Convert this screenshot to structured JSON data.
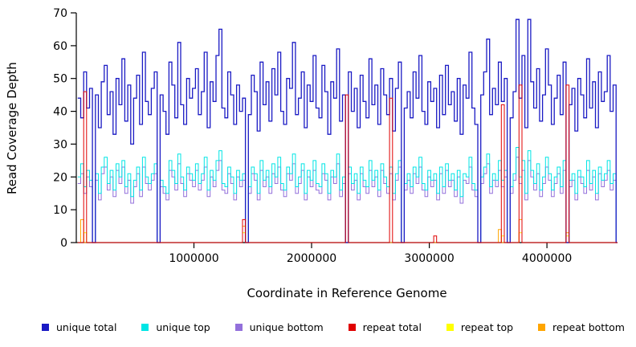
{
  "figure": {
    "background": "#FFFFFF"
  },
  "chart_data": {
    "type": "line",
    "style": "step",
    "title": "",
    "xlabel": "Coordinate in Reference Genome",
    "ylabel": "Read Coverage Depth",
    "xlim": [
      0,
      4600000
    ],
    "ylim": [
      0,
      70
    ],
    "x_ticks": [
      1000000,
      2000000,
      3000000,
      4000000
    ],
    "x_tick_labels": [
      "1000000",
      "2000000",
      "3000000",
      "4000000"
    ],
    "y_ticks": [
      0,
      10,
      20,
      30,
      40,
      50,
      60,
      70
    ],
    "grid": false,
    "legend_position": "bottom",
    "x_start": 12500,
    "x_step": 25000,
    "n_points": 184,
    "series": [
      {
        "name": "unique total",
        "color": "#1A1AC4",
        "values": [
          44,
          38,
          52,
          41,
          47,
          0,
          45,
          35,
          49,
          54,
          39,
          46,
          33,
          50,
          42,
          56,
          37,
          48,
          30,
          44,
          51,
          36,
          58,
          43,
          39,
          47,
          52,
          0,
          45,
          40,
          33,
          55,
          48,
          38,
          61,
          42,
          36,
          50,
          44,
          47,
          53,
          39,
          46,
          58,
          35,
          49,
          43,
          57,
          65,
          41,
          38,
          52,
          45,
          36,
          48,
          40,
          44,
          0,
          39,
          51,
          46,
          34,
          55,
          42,
          49,
          37,
          53,
          45,
          58,
          40,
          36,
          50,
          47,
          61,
          39,
          44,
          52,
          35,
          48,
          43,
          57,
          41,
          38,
          54,
          46,
          33,
          49,
          44,
          59,
          37,
          45,
          0,
          52,
          40,
          47,
          35,
          51,
          43,
          38,
          56,
          42,
          48,
          36,
          53,
          45,
          39,
          50,
          34,
          47,
          55,
          0,
          41,
          46,
          38,
          52,
          44,
          57,
          40,
          36,
          49,
          43,
          47,
          35,
          51,
          39,
          54,
          42,
          46,
          37,
          50,
          33,
          48,
          44,
          58,
          41,
          36,
          0,
          45,
          52,
          62,
          39,
          47,
          42,
          55,
          43,
          50,
          0,
          38,
          46,
          68,
          44,
          57,
          35,
          68,
          49,
          41,
          53,
          37,
          45,
          59,
          48,
          36,
          44,
          51,
          39,
          55,
          0,
          42,
          47,
          34,
          50,
          45,
          38,
          56,
          41,
          49,
          35,
          52,
          43,
          46,
          57,
          40,
          48,
          0
        ]
      },
      {
        "name": "unique top",
        "color": "#00E5E5",
        "values": [
          20,
          24,
          17,
          22,
          19,
          0,
          21,
          15,
          23,
          26,
          18,
          22,
          16,
          24,
          20,
          25,
          17,
          21,
          14,
          19,
          23,
          16,
          26,
          20,
          18,
          21,
          24,
          0,
          19,
          17,
          15,
          25,
          22,
          18,
          27,
          20,
          16,
          23,
          21,
          19,
          24,
          18,
          21,
          26,
          16,
          22,
          19,
          25,
          28,
          18,
          17,
          23,
          20,
          15,
          22,
          19,
          21,
          0,
          17,
          23,
          21,
          15,
          25,
          19,
          22,
          17,
          24,
          20,
          26,
          18,
          16,
          23,
          21,
          27,
          17,
          20,
          24,
          15,
          22,
          19,
          25,
          18,
          17,
          24,
          21,
          15,
          22,
          20,
          27,
          16,
          20,
          0,
          23,
          18,
          21,
          15,
          23,
          19,
          17,
          25,
          19,
          22,
          16,
          24,
          20,
          17,
          23,
          15,
          21,
          25,
          0,
          18,
          21,
          17,
          23,
          20,
          26,
          18,
          16,
          22,
          19,
          21,
          15,
          23,
          17,
          24,
          19,
          21,
          16,
          22,
          14,
          21,
          20,
          26,
          18,
          16,
          0,
          20,
          23,
          27,
          17,
          21,
          19,
          25,
          19,
          22,
          0,
          17,
          21,
          29,
          20,
          25,
          15,
          28,
          22,
          18,
          24,
          16,
          20,
          26,
          21,
          16,
          20,
          23,
          17,
          25,
          0,
          19,
          21,
          15,
          22,
          20,
          17,
          25,
          18,
          22,
          15,
          23,
          19,
          21,
          25,
          18,
          21,
          0
        ]
      },
      {
        "name": "unique bottom",
        "color": "#9370DB",
        "values": [
          18,
          21,
          15,
          20,
          17,
          0,
          19,
          13,
          21,
          23,
          16,
          20,
          14,
          22,
          18,
          23,
          15,
          19,
          12,
          17,
          21,
          14,
          23,
          18,
          16,
          19,
          21,
          0,
          17,
          15,
          13,
          22,
          20,
          16,
          24,
          18,
          14,
          21,
          19,
          17,
          22,
          16,
          19,
          23,
          14,
          20,
          17,
          22,
          25,
          16,
          15,
          21,
          18,
          13,
          20,
          17,
          19,
          0,
          15,
          21,
          19,
          13,
          22,
          17,
          20,
          15,
          21,
          18,
          23,
          16,
          14,
          21,
          19,
          24,
          15,
          18,
          22,
          13,
          20,
          17,
          22,
          16,
          15,
          21,
          19,
          13,
          20,
          18,
          24,
          14,
          18,
          0,
          21,
          16,
          19,
          13,
          21,
          17,
          15,
          22,
          17,
          20,
          14,
          22,
          18,
          15,
          21,
          13,
          19,
          23,
          0,
          16,
          19,
          15,
          21,
          18,
          23,
          16,
          14,
          20,
          17,
          19,
          13,
          21,
          15,
          22,
          17,
          19,
          14,
          20,
          12,
          19,
          18,
          23,
          16,
          14,
          0,
          18,
          21,
          24,
          15,
          19,
          17,
          22,
          17,
          20,
          0,
          15,
          19,
          26,
          18,
          22,
          13,
          25,
          20,
          16,
          21,
          14,
          18,
          23,
          19,
          14,
          18,
          21,
          15,
          22,
          0,
          17,
          19,
          13,
          20,
          18,
          15,
          22,
          16,
          20,
          13,
          21,
          17,
          19,
          22,
          16,
          19,
          0
        ]
      },
      {
        "name": "repeat total",
        "color": "#E00000",
        "baseline": 0,
        "spikes": [
          {
            "i": 2,
            "v": 46
          },
          {
            "i": 56,
            "v": 7
          },
          {
            "i": 91,
            "v": 45
          },
          {
            "i": 106,
            "v": 44
          },
          {
            "i": 121,
            "v": 2
          },
          {
            "i": 144,
            "v": 42
          },
          {
            "i": 150,
            "v": 48
          },
          {
            "i": 166,
            "v": 48
          }
        ]
      },
      {
        "name": "repeat top",
        "color": "#FFFF00",
        "baseline": 0,
        "spikes": [
          {
            "i": 2,
            "v": 3
          },
          {
            "i": 56,
            "v": 3
          },
          {
            "i": 144,
            "v": 2
          },
          {
            "i": 150,
            "v": 3
          },
          {
            "i": 166,
            "v": 2
          }
        ]
      },
      {
        "name": "repeat bottom",
        "color": "#FFA500",
        "baseline": 0,
        "spikes": [
          {
            "i": 1,
            "v": 7
          },
          {
            "i": 56,
            "v": 5
          },
          {
            "i": 143,
            "v": 4
          },
          {
            "i": 150,
            "v": 7
          },
          {
            "i": 166,
            "v": 3
          }
        ]
      }
    ],
    "legend": {
      "entries": [
        {
          "label": "unique total",
          "color": "#1A1AC4"
        },
        {
          "label": "unique top",
          "color": "#00E5E5"
        },
        {
          "label": "unique bottom",
          "color": "#9370DB"
        },
        {
          "label": "repeat total",
          "color": "#E00000"
        },
        {
          "label": "repeat top",
          "color": "#FFFF00"
        },
        {
          "label": "repeat bottom",
          "color": "#FFA500"
        }
      ]
    }
  }
}
